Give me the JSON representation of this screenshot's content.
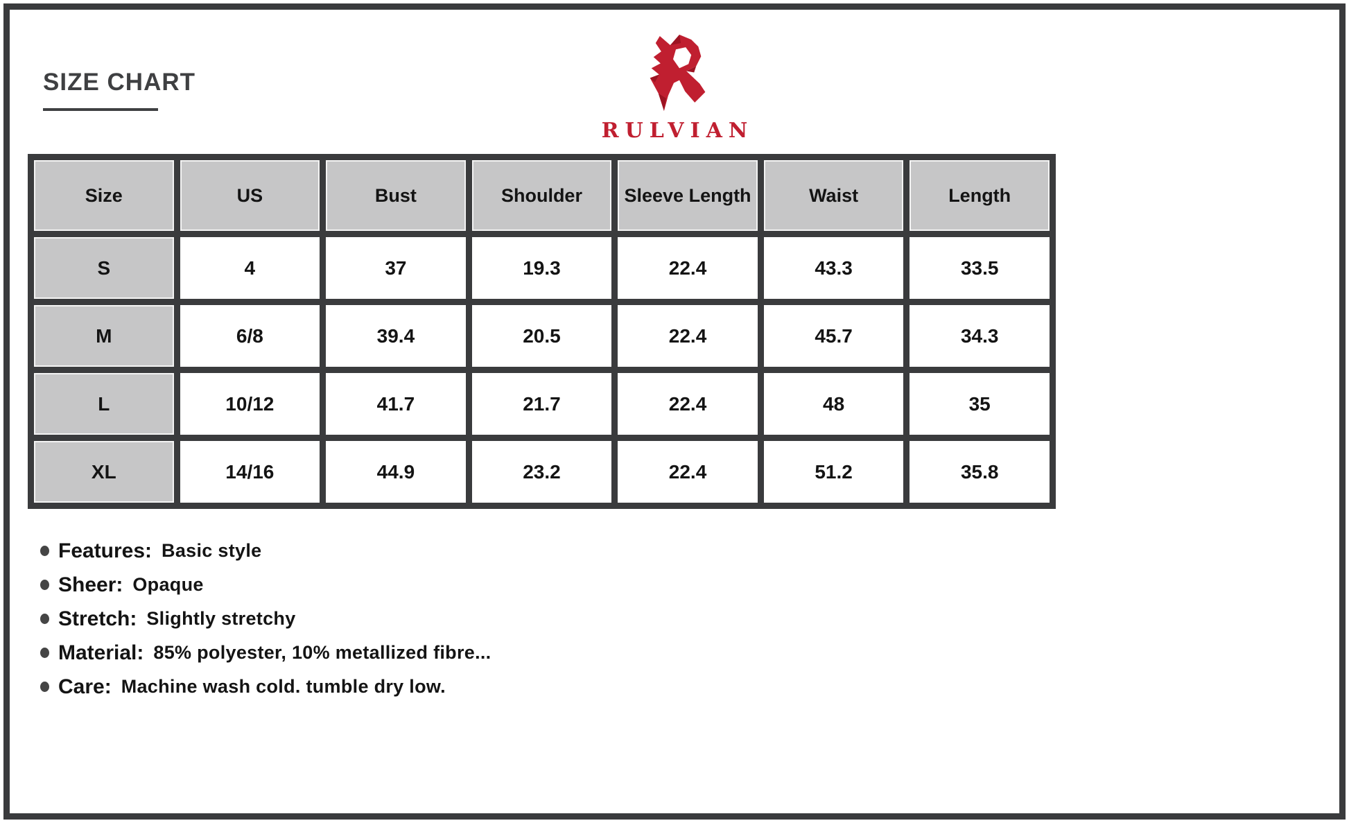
{
  "page": {
    "title": "SIZE CHART"
  },
  "brand": {
    "name": "RULVIAN",
    "logo_icon": "faceted-r-logo"
  },
  "table": {
    "headers": [
      "Size",
      "US",
      "Bust",
      "Shoulder",
      "Sleeve Length",
      "Waist",
      "Length"
    ],
    "rows": [
      [
        "S",
        "4",
        "37",
        "19.3",
        "22.4",
        "43.3",
        "33.5"
      ],
      [
        "M",
        "6/8",
        "39.4",
        "20.5",
        "22.4",
        "45.7",
        "34.3"
      ],
      [
        "L",
        "10/12",
        "41.7",
        "21.7",
        "22.4",
        "48",
        "35"
      ],
      [
        "XL",
        "14/16",
        "44.9",
        "23.2",
        "22.4",
        "51.2",
        "35.8"
      ]
    ]
  },
  "details": [
    {
      "label": "Features:",
      "value": "Basic style"
    },
    {
      "label": "Sheer:",
      "value": "Opaque"
    },
    {
      "label": "Stretch:",
      "value": "Slightly stretchy"
    },
    {
      "label": "Material:",
      "value": "85% polyester, 10% metallized fibre..."
    },
    {
      "label": "Care:",
      "value": "Machine wash cold. tumble dry low."
    }
  ],
  "colors": {
    "accent": "#c01f30",
    "grid": "#3a3b3d",
    "cellgray": "#c6c6c7",
    "ink": "#141414",
    "titleink": "#3f4042"
  }
}
